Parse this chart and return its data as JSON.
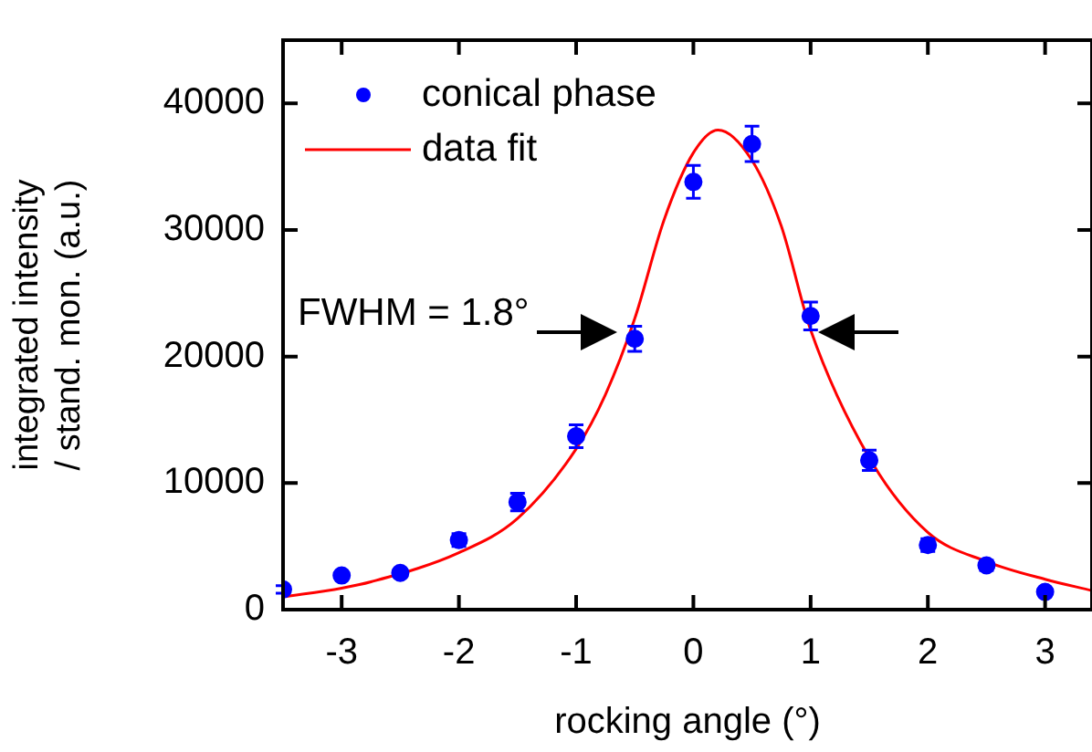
{
  "chart_data": {
    "type": "scatter",
    "xlabel": "rocking angle (°)",
    "ylabel": "integrated intensity\n/ stand. mon. (a.u.)",
    "annotations": [
      "FWHM = 1.8°"
    ],
    "xlim": [
      -3.5,
      3.4
    ],
    "xticks": [
      -3,
      -2,
      -1,
      0,
      1,
      2,
      3
    ],
    "ylim": [
      0,
      45000
    ],
    "yticks": [
      0,
      10000,
      20000,
      30000,
      40000
    ],
    "grid": false,
    "legend": "top left",
    "series": [
      {
        "name": "conical phase",
        "type": "scatter",
        "color": "#0000ff",
        "marker": "circle",
        "x": [
          -3.5,
          -3,
          -2.5,
          -2,
          -1.5,
          -1,
          -0.5,
          0,
          0.5,
          1,
          1.5,
          2,
          2.5,
          3
        ],
        "values": [
          1600,
          2700,
          2900,
          5500,
          8500,
          13700,
          21400,
          33800,
          36800,
          23200,
          11800,
          5100,
          3500,
          1400
        ],
        "errors": [
          300,
          300,
          300,
          500,
          700,
          900,
          1000,
          1300,
          1400,
          1100,
          800,
          500,
          400,
          300
        ]
      },
      {
        "name": "data fit",
        "type": "line",
        "color": "#ff0000",
        "marker": "none",
        "line_style": "solid",
        "x": [
          -3.5,
          -3,
          -2.75,
          -2,
          -1.5,
          -1,
          -0.75,
          -0.5,
          -0.25,
          0,
          0.21,
          0.5,
          0.75,
          1,
          1.5,
          2,
          2.5,
          3,
          3.4
        ],
        "values": [
          1000,
          1700,
          2200,
          4500,
          7200,
          12700,
          17000,
          23000,
          30800,
          36100,
          37900,
          35500,
          30300,
          22100,
          12000,
          6100,
          3800,
          2400,
          1500
        ]
      }
    ]
  }
}
